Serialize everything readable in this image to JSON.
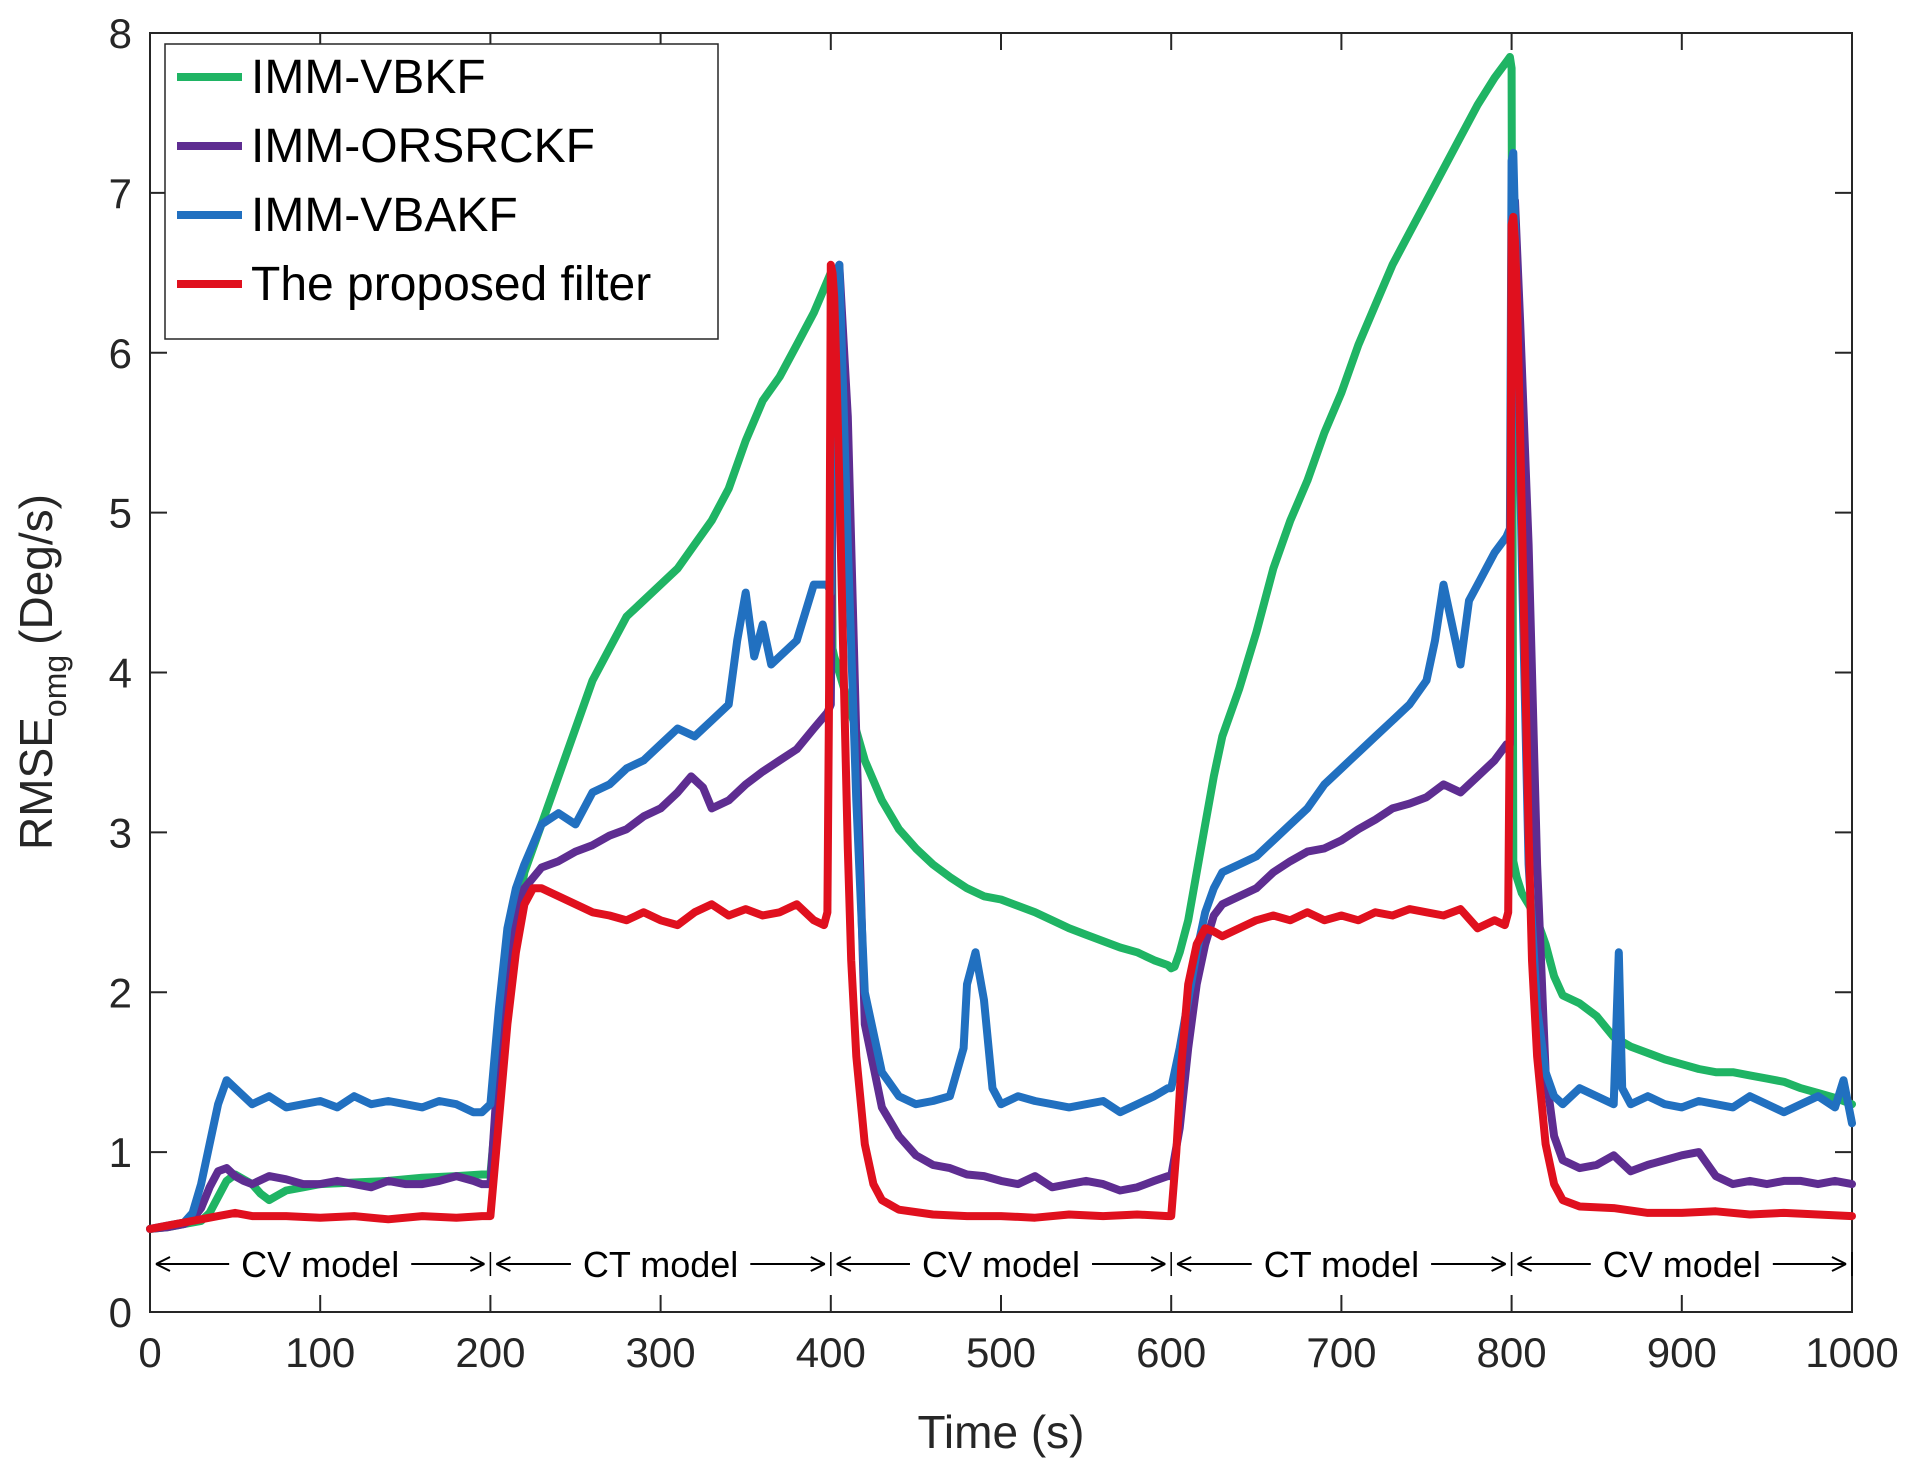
{
  "chart_data": {
    "type": "line",
    "title": "",
    "xlabel": "Time (s)",
    "ylabel": {
      "main": "RMSE",
      "subscript": "omg",
      "unit": "(Deg/s)"
    },
    "xlim": [
      0,
      1000
    ],
    "ylim": [
      0,
      8
    ],
    "xticks": [
      0,
      100,
      200,
      300,
      400,
      500,
      600,
      700,
      800,
      900,
      1000
    ],
    "yticks": [
      0,
      1,
      2,
      3,
      4,
      5,
      6,
      7,
      8
    ],
    "grid": false,
    "legend_position": "top-left",
    "annotations": [
      {
        "label": "CV model",
        "x_from": 0,
        "x_to": 200,
        "y": 0.3
      },
      {
        "label": "CT model",
        "x_from": 200,
        "x_to": 400,
        "y": 0.3
      },
      {
        "label": "CV model",
        "x_from": 400,
        "x_to": 600,
        "y": 0.3
      },
      {
        "label": "CT model",
        "x_from": 600,
        "x_to": 800,
        "y": 0.3
      },
      {
        "label": "CV model",
        "x_from": 800,
        "x_to": 1000,
        "y": 0.3
      }
    ],
    "series": [
      {
        "name": "IMM-VBKF",
        "color": "#1fb464",
        "x": [
          0,
          10,
          20,
          30,
          35,
          40,
          45,
          50,
          55,
          60,
          65,
          70,
          75,
          80,
          90,
          100,
          120,
          140,
          160,
          180,
          195,
          200,
          205,
          210,
          215,
          220,
          230,
          240,
          250,
          260,
          270,
          280,
          290,
          300,
          310,
          320,
          330,
          340,
          350,
          360,
          370,
          380,
          390,
          398,
          400,
          401,
          402,
          405,
          410,
          420,
          430,
          440,
          450,
          460,
          470,
          480,
          490,
          500,
          510,
          520,
          530,
          540,
          550,
          560,
          570,
          580,
          590,
          598,
          600,
          602,
          605,
          610,
          615,
          620,
          625,
          630,
          640,
          650,
          660,
          670,
          680,
          690,
          700,
          710,
          720,
          730,
          740,
          750,
          760,
          770,
          780,
          790,
          797,
          799,
          800,
          801,
          803,
          806,
          810,
          815,
          820,
          825,
          830,
          840,
          850,
          860,
          870,
          880,
          890,
          900,
          910,
          920,
          930,
          940,
          950,
          960,
          970,
          980,
          990,
          1000
        ],
        "y": [
          0.52,
          0.53,
          0.55,
          0.57,
          0.62,
          0.72,
          0.82,
          0.86,
          0.83,
          0.8,
          0.74,
          0.7,
          0.73,
          0.76,
          0.78,
          0.8,
          0.81,
          0.82,
          0.84,
          0.85,
          0.86,
          0.86,
          1.45,
          2.05,
          2.45,
          2.75,
          3.05,
          3.35,
          3.65,
          3.95,
          4.15,
          4.35,
          4.45,
          4.55,
          4.65,
          4.8,
          4.95,
          5.15,
          5.45,
          5.7,
          5.85,
          6.05,
          6.25,
          6.45,
          6.5,
          4.15,
          4.1,
          4.0,
          3.82,
          3.45,
          3.2,
          3.02,
          2.9,
          2.8,
          2.72,
          2.65,
          2.6,
          2.58,
          2.54,
          2.5,
          2.45,
          2.4,
          2.36,
          2.32,
          2.28,
          2.25,
          2.2,
          2.17,
          2.15,
          2.16,
          2.25,
          2.45,
          2.75,
          3.05,
          3.35,
          3.6,
          3.9,
          4.25,
          4.65,
          4.95,
          5.2,
          5.5,
          5.75,
          6.05,
          6.3,
          6.55,
          6.75,
          6.95,
          7.15,
          7.35,
          7.55,
          7.72,
          7.82,
          7.85,
          7.78,
          2.82,
          2.72,
          2.62,
          2.55,
          2.45,
          2.3,
          2.1,
          1.98,
          1.93,
          1.85,
          1.72,
          1.66,
          1.62,
          1.58,
          1.55,
          1.52,
          1.5,
          1.5,
          1.48,
          1.46,
          1.44,
          1.4,
          1.37,
          1.34,
          1.3
        ]
      },
      {
        "name": "IMM-ORSRCKF",
        "color": "#5e2d91",
        "x": [
          0,
          10,
          20,
          25,
          30,
          35,
          40,
          45,
          50,
          55,
          60,
          70,
          80,
          90,
          100,
          110,
          120,
          130,
          140,
          150,
          160,
          170,
          180,
          190,
          195,
          200,
          205,
          210,
          215,
          220,
          230,
          240,
          250,
          260,
          270,
          280,
          290,
          300,
          310,
          318,
          325,
          330,
          340,
          350,
          360,
          370,
          380,
          390,
          398,
          400,
          402,
          405,
          410,
          415,
          420,
          430,
          440,
          450,
          460,
          470,
          480,
          490,
          500,
          510,
          520,
          530,
          540,
          550,
          560,
          570,
          580,
          590,
          598,
          600,
          605,
          610,
          615,
          620,
          625,
          630,
          640,
          650,
          660,
          670,
          680,
          690,
          700,
          710,
          720,
          730,
          740,
          750,
          760,
          770,
          780,
          790,
          797,
          799,
          800,
          802,
          805,
          810,
          815,
          820,
          825,
          830,
          840,
          850,
          860,
          870,
          880,
          890,
          900,
          910,
          920,
          930,
          940,
          950,
          960,
          970,
          980,
          990,
          1000
        ],
        "y": [
          0.52,
          0.53,
          0.55,
          0.58,
          0.65,
          0.78,
          0.88,
          0.9,
          0.85,
          0.82,
          0.8,
          0.85,
          0.83,
          0.8,
          0.8,
          0.82,
          0.8,
          0.78,
          0.82,
          0.8,
          0.8,
          0.82,
          0.85,
          0.82,
          0.8,
          0.8,
          1.6,
          2.15,
          2.45,
          2.65,
          2.78,
          2.82,
          2.88,
          2.92,
          2.98,
          3.02,
          3.1,
          3.15,
          3.25,
          3.35,
          3.28,
          3.15,
          3.2,
          3.3,
          3.38,
          3.45,
          3.52,
          3.65,
          3.75,
          3.8,
          6.45,
          6.55,
          5.6,
          3.6,
          1.8,
          1.28,
          1.1,
          0.98,
          0.92,
          0.9,
          0.86,
          0.85,
          0.82,
          0.8,
          0.85,
          0.78,
          0.8,
          0.82,
          0.8,
          0.76,
          0.78,
          0.82,
          0.85,
          0.85,
          1.15,
          1.65,
          2.05,
          2.3,
          2.48,
          2.55,
          2.6,
          2.65,
          2.75,
          2.82,
          2.88,
          2.9,
          2.95,
          3.02,
          3.08,
          3.15,
          3.18,
          3.22,
          3.3,
          3.25,
          3.35,
          3.45,
          3.55,
          3.55,
          6.85,
          6.95,
          6.2,
          4.8,
          2.8,
          1.5,
          1.1,
          0.95,
          0.9,
          0.92,
          0.98,
          0.88,
          0.92,
          0.95,
          0.98,
          1.0,
          0.85,
          0.8,
          0.82,
          0.8,
          0.82,
          0.82,
          0.8,
          0.82,
          0.8
        ]
      },
      {
        "name": "IMM-VBAKF",
        "color": "#2170c0",
        "x": [
          0,
          10,
          20,
          25,
          30,
          35,
          40,
          45,
          50,
          60,
          70,
          80,
          90,
          100,
          110,
          120,
          130,
          140,
          150,
          160,
          170,
          180,
          190,
          195,
          200,
          205,
          210,
          215,
          220,
          230,
          240,
          250,
          260,
          270,
          280,
          290,
          300,
          310,
          320,
          330,
          340,
          345,
          350,
          355,
          360,
          365,
          370,
          380,
          390,
          398,
          400,
          402,
          405,
          410,
          415,
          420,
          430,
          440,
          450,
          460,
          470,
          478,
          480,
          485,
          490,
          495,
          500,
          510,
          520,
          530,
          540,
          550,
          560,
          570,
          580,
          590,
          598,
          600,
          605,
          610,
          615,
          620,
          625,
          630,
          640,
          650,
          660,
          670,
          680,
          690,
          700,
          710,
          720,
          730,
          740,
          750,
          755,
          760,
          765,
          770,
          775,
          780,
          790,
          797,
          799,
          800,
          801,
          803,
          806,
          810,
          815,
          820,
          825,
          830,
          840,
          850,
          860,
          863,
          865,
          870,
          880,
          890,
          900,
          910,
          920,
          930,
          940,
          950,
          960,
          970,
          980,
          990,
          995,
          1000
        ],
        "y": [
          0.52,
          0.54,
          0.56,
          0.62,
          0.8,
          1.05,
          1.3,
          1.45,
          1.4,
          1.3,
          1.35,
          1.28,
          1.3,
          1.32,
          1.28,
          1.35,
          1.3,
          1.32,
          1.3,
          1.28,
          1.32,
          1.3,
          1.25,
          1.25,
          1.3,
          1.9,
          2.4,
          2.65,
          2.8,
          3.05,
          3.12,
          3.05,
          3.25,
          3.3,
          3.4,
          3.45,
          3.55,
          3.65,
          3.6,
          3.7,
          3.8,
          4.2,
          4.5,
          4.1,
          4.3,
          4.05,
          4.1,
          4.2,
          4.55,
          4.55,
          4.5,
          6.4,
          6.55,
          4.8,
          3.2,
          2.0,
          1.5,
          1.35,
          1.3,
          1.32,
          1.35,
          1.65,
          2.05,
          2.25,
          1.95,
          1.4,
          1.3,
          1.35,
          1.32,
          1.3,
          1.28,
          1.3,
          1.32,
          1.25,
          1.3,
          1.35,
          1.4,
          1.4,
          1.65,
          1.95,
          2.25,
          2.5,
          2.65,
          2.75,
          2.8,
          2.85,
          2.95,
          3.05,
          3.15,
          3.3,
          3.4,
          3.5,
          3.6,
          3.7,
          3.8,
          3.95,
          4.2,
          4.55,
          4.3,
          4.05,
          4.45,
          4.55,
          4.75,
          4.85,
          4.9,
          7.2,
          7.25,
          6.4,
          4.7,
          2.8,
          1.9,
          1.5,
          1.35,
          1.3,
          1.4,
          1.35,
          1.3,
          2.25,
          1.4,
          1.3,
          1.35,
          1.3,
          1.28,
          1.32,
          1.3,
          1.28,
          1.35,
          1.3,
          1.25,
          1.3,
          1.35,
          1.28,
          1.45,
          1.18
        ]
      },
      {
        "name": "The proposed filter",
        "color": "#e0101e",
        "x": [
          0,
          10,
          20,
          30,
          40,
          50,
          60,
          80,
          100,
          120,
          140,
          160,
          180,
          195,
          200,
          205,
          210,
          215,
          220,
          225,
          230,
          240,
          250,
          260,
          270,
          280,
          290,
          300,
          310,
          320,
          330,
          340,
          350,
          360,
          370,
          380,
          390,
          396,
          398,
          399,
          400,
          401,
          402,
          403,
          405,
          408,
          410,
          412,
          415,
          420,
          425,
          430,
          440,
          460,
          480,
          500,
          520,
          540,
          560,
          580,
          598,
          600,
          603,
          606,
          610,
          615,
          620,
          625,
          630,
          640,
          650,
          660,
          670,
          680,
          690,
          700,
          710,
          720,
          730,
          740,
          750,
          760,
          770,
          780,
          790,
          796,
          798,
          799,
          800,
          801,
          802,
          803,
          805,
          808,
          810,
          812,
          815,
          820,
          825,
          830,
          840,
          860,
          880,
          900,
          920,
          940,
          960,
          980,
          1000
        ],
        "y": [
          0.52,
          0.54,
          0.56,
          0.58,
          0.6,
          0.62,
          0.6,
          0.6,
          0.59,
          0.6,
          0.58,
          0.6,
          0.59,
          0.6,
          0.6,
          1.2,
          1.8,
          2.25,
          2.55,
          2.65,
          2.65,
          2.6,
          2.55,
          2.5,
          2.48,
          2.45,
          2.5,
          2.45,
          2.42,
          2.5,
          2.55,
          2.48,
          2.52,
          2.48,
          2.5,
          2.55,
          2.45,
          2.42,
          2.5,
          3.9,
          6.55,
          6.5,
          6.35,
          6.0,
          5.2,
          3.8,
          2.9,
          2.2,
          1.6,
          1.05,
          0.8,
          0.7,
          0.64,
          0.61,
          0.6,
          0.6,
          0.59,
          0.61,
          0.6,
          0.61,
          0.6,
          0.6,
          1.0,
          1.55,
          2.05,
          2.3,
          2.4,
          2.38,
          2.35,
          2.4,
          2.45,
          2.48,
          2.45,
          2.5,
          2.45,
          2.48,
          2.45,
          2.5,
          2.48,
          2.52,
          2.5,
          2.48,
          2.52,
          2.4,
          2.45,
          2.42,
          2.5,
          3.8,
          6.8,
          6.85,
          6.7,
          6.4,
          5.5,
          4.0,
          3.0,
          2.2,
          1.6,
          1.05,
          0.8,
          0.7,
          0.66,
          0.65,
          0.62,
          0.62,
          0.63,
          0.61,
          0.62,
          0.61,
          0.6
        ]
      }
    ]
  }
}
